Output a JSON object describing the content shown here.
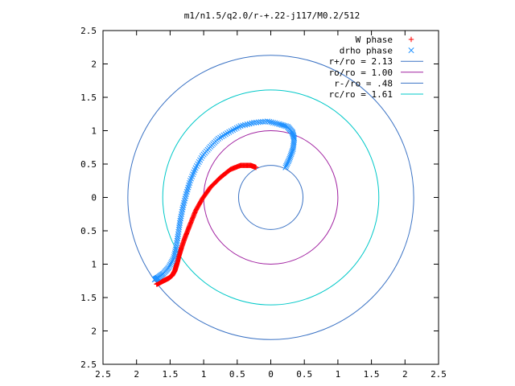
{
  "chart_data": {
    "type": "scatter",
    "title": "m1/n1.5/q2.0/r-+.22-j117/M0.2/512",
    "xlabel": "",
    "ylabel": "",
    "xlim": [
      -2.5,
      2.5
    ],
    "ylim": [
      -2.5,
      2.5
    ],
    "xticks": [
      -2.5,
      -2,
      -1.5,
      -1,
      -0.5,
      0,
      0.5,
      1,
      1.5,
      2,
      2.5
    ],
    "yticks": [
      -2.5,
      -2,
      -1.5,
      -1,
      -0.5,
      0,
      0.5,
      1,
      1.5,
      2,
      2.5
    ],
    "xtick_labels": [
      "2.5",
      "2",
      "1.5",
      "1",
      "0.5",
      "0",
      "0.5",
      "1",
      "1.5",
      "2",
      "2.5"
    ],
    "ytick_labels": [
      "2.5",
      "2",
      "1.5",
      "1",
      "0.5",
      "0",
      "0.5",
      "1",
      "1.5",
      "2",
      "2.5"
    ],
    "grid": false,
    "legend_position": "top-right",
    "series": [
      {
        "name": "W phase",
        "kind": "points",
        "marker": "+",
        "color": "#ff0000",
        "x": [
          -0.22,
          -0.3,
          -0.45,
          -0.6,
          -0.75,
          -0.9,
          -1.02,
          -1.12,
          -1.2,
          -1.27,
          -1.33,
          -1.37,
          -1.4,
          -1.43,
          -1.47,
          -1.52,
          -1.58,
          -1.64,
          -1.68,
          -1.7
        ],
        "y": [
          0.45,
          0.48,
          0.48,
          0.42,
          0.3,
          0.15,
          -0.02,
          -0.2,
          -0.4,
          -0.58,
          -0.75,
          -0.88,
          -1.0,
          -1.1,
          -1.17,
          -1.21,
          -1.24,
          -1.27,
          -1.29,
          -1.3
        ]
      },
      {
        "name": "drho phase",
        "kind": "points",
        "marker": "x",
        "color": "#1e90ff",
        "x": [
          0.22,
          0.28,
          0.33,
          0.35,
          0.32,
          0.25,
          0.12,
          -0.05,
          -0.25,
          -0.45,
          -0.62,
          -0.78,
          -0.9,
          -1.02,
          -1.12,
          -1.2,
          -1.26,
          -1.31,
          -1.35,
          -1.38,
          -1.41,
          -1.45,
          -1.52,
          -1.6,
          -1.68,
          -1.73
        ],
        "y": [
          0.45,
          0.58,
          0.72,
          0.88,
          0.98,
          1.06,
          1.1,
          1.14,
          1.12,
          1.07,
          0.98,
          0.88,
          0.76,
          0.62,
          0.44,
          0.25,
          0.05,
          -0.15,
          -0.35,
          -0.55,
          -0.75,
          -0.92,
          -1.05,
          -1.14,
          -1.2,
          -1.23
        ]
      },
      {
        "name": "r+/ro = 2.13",
        "kind": "circle",
        "r": 2.13,
        "color": "#3a72c4"
      },
      {
        "name": "ro/ro = 1.00",
        "kind": "circle",
        "r": 1.0,
        "color": "#a020a0"
      },
      {
        "name": "r-/ro = .48",
        "kind": "circle",
        "r": 0.48,
        "color": "#3a72c4"
      },
      {
        "name": "rc/ro = 1.61",
        "kind": "circle",
        "r": 1.61,
        "color": "#00c8c8"
      }
    ]
  }
}
